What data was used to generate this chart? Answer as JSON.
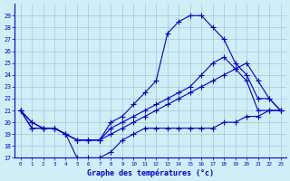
{
  "title": "Graphe des températures (°c)",
  "background_color": "#d0eef8",
  "grid_color": "#a0b8cc",
  "line_color": "#0000cc",
  "xlim": [
    -0.5,
    23.5
  ],
  "ylim": [
    17,
    30
  ],
  "yticks": [
    17,
    18,
    19,
    20,
    21,
    22,
    23,
    24,
    25,
    26,
    27,
    28,
    29
  ],
  "xticks": [
    0,
    1,
    2,
    3,
    4,
    5,
    6,
    7,
    8,
    9,
    10,
    11,
    12,
    13,
    14,
    15,
    16,
    17,
    18,
    19,
    20,
    21,
    22,
    23
  ],
  "series1_x": [
    0,
    1,
    2,
    3,
    4,
    5,
    6,
    7,
    8,
    9,
    10,
    11,
    12,
    13,
    14,
    15,
    16,
    17,
    18,
    19,
    20,
    21,
    22,
    23
  ],
  "series1_y": [
    21.0,
    20.0,
    19.5,
    19.5,
    19.0,
    18.5,
    18.5,
    18.5,
    19.5,
    20.0,
    20.5,
    21.0,
    21.5,
    22.0,
    22.5,
    23.0,
    24.0,
    25.0,
    25.5,
    24.5,
    23.5,
    21.0,
    21.0,
    21.0
  ],
  "series2_x": [
    0,
    1,
    2,
    3,
    4,
    5,
    6,
    7,
    8,
    9,
    10,
    11,
    12,
    13,
    14,
    15,
    16,
    17,
    18,
    19,
    20,
    21,
    22,
    23
  ],
  "series2_y": [
    21.0,
    20.0,
    19.5,
    19.5,
    19.0,
    18.5,
    18.5,
    18.5,
    20.0,
    20.5,
    21.5,
    22.5,
    23.5,
    27.5,
    28.5,
    29.0,
    29.0,
    28.0,
    27.0,
    25.0,
    24.0,
    22.0,
    22.0,
    21.0
  ],
  "series3_x": [
    0,
    1,
    2,
    3,
    4,
    5,
    6,
    7,
    8,
    9,
    10,
    11,
    12,
    13,
    14,
    15,
    16,
    17,
    18,
    19,
    20,
    21,
    22,
    23
  ],
  "series3_y": [
    21.0,
    19.5,
    19.5,
    19.5,
    19.0,
    18.5,
    18.5,
    18.5,
    19.0,
    19.5,
    20.0,
    20.5,
    21.0,
    21.5,
    22.0,
    22.5,
    23.0,
    23.5,
    24.0,
    24.5,
    25.0,
    23.5,
    22.0,
    21.0
  ],
  "series4_x": [
    0,
    1,
    2,
    3,
    4,
    5,
    6,
    7,
    8,
    9,
    10,
    11,
    12,
    13,
    14,
    15,
    16,
    17,
    18,
    19,
    20,
    21,
    22,
    23
  ],
  "series4_y": [
    21.0,
    19.5,
    19.5,
    19.5,
    19.0,
    17.0,
    17.0,
    17.0,
    17.5,
    18.5,
    19.0,
    19.5,
    19.5,
    19.5,
    19.5,
    19.5,
    19.5,
    19.5,
    20.0,
    20.0,
    20.5,
    20.5,
    21.0,
    21.0
  ]
}
